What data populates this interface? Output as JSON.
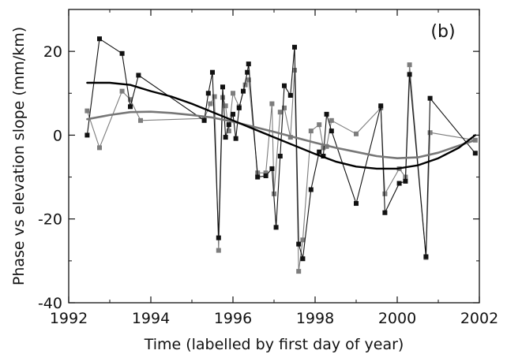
{
  "chart_data": {
    "type": "line",
    "panel_label": "(b)",
    "xlabel": "Time (labelled by first day of year)",
    "ylabel": "Phase vs elevation slope (mm/km)",
    "xlim": [
      1992,
      2002
    ],
    "ylim": [
      -40,
      30
    ],
    "x_ticks": [
      1992,
      1994,
      1996,
      1998,
      2000,
      2002
    ],
    "y_ticks": [
      -40,
      -20,
      0,
      20
    ],
    "grid": false,
    "legend": "none",
    "colors": {
      "black_series": "#111111",
      "gray_series": "#7d7d7d",
      "black_trend": "#000000",
      "gray_trend": "#777777"
    },
    "series": [
      {
        "kind": "points",
        "color_key": "black_series",
        "points": [
          [
            1992.45,
            0.0
          ],
          [
            1992.75,
            23.0
          ],
          [
            1993.3,
            19.5
          ],
          [
            1993.5,
            6.8
          ],
          [
            1993.7,
            14.3
          ],
          [
            1995.3,
            3.5
          ],
          [
            1995.4,
            10.0
          ],
          [
            1995.5,
            15.0
          ],
          [
            1995.65,
            -24.5
          ],
          [
            1995.75,
            11.5
          ],
          [
            1995.82,
            -0.5
          ],
          [
            1995.9,
            2.5
          ],
          [
            1996.0,
            5.0
          ],
          [
            1996.07,
            -0.8
          ],
          [
            1996.15,
            6.5
          ],
          [
            1996.25,
            10.5
          ],
          [
            1996.35,
            15.0
          ],
          [
            1996.38,
            17.0
          ],
          [
            1996.6,
            -10.0
          ],
          [
            1996.8,
            -9.7
          ],
          [
            1996.95,
            -8.0
          ],
          [
            1997.05,
            -22.0
          ],
          [
            1997.15,
            -5.0
          ],
          [
            1997.25,
            11.8
          ],
          [
            1997.4,
            9.5
          ],
          [
            1997.5,
            21.0
          ],
          [
            1997.6,
            -26.0
          ],
          [
            1997.7,
            -29.5
          ],
          [
            1997.9,
            -13.0
          ],
          [
            1998.1,
            -4.0
          ],
          [
            1998.2,
            -5.0
          ],
          [
            1998.28,
            5.0
          ],
          [
            1998.4,
            1.0
          ],
          [
            1999.0,
            -16.3
          ],
          [
            1999.6,
            7.0
          ],
          [
            1999.7,
            -18.5
          ],
          [
            2000.05,
            -11.5
          ],
          [
            2000.2,
            -11.0
          ],
          [
            2000.3,
            14.5
          ],
          [
            2000.7,
            -29.0
          ],
          [
            2000.8,
            8.8
          ],
          [
            2001.9,
            -4.3
          ]
        ]
      },
      {
        "kind": "points",
        "color_key": "gray_series",
        "points": [
          [
            1992.45,
            5.8
          ],
          [
            1992.75,
            -3.0
          ],
          [
            1993.3,
            10.5
          ],
          [
            1993.5,
            8.5
          ],
          [
            1993.75,
            3.5
          ],
          [
            1995.3,
            4.0
          ],
          [
            1995.45,
            7.5
          ],
          [
            1995.55,
            9.2
          ],
          [
            1995.65,
            -27.5
          ],
          [
            1995.75,
            9.0
          ],
          [
            1995.82,
            7.0
          ],
          [
            1995.9,
            1.0
          ],
          [
            1996.0,
            10.0
          ],
          [
            1996.15,
            6.8
          ],
          [
            1996.3,
            12.0
          ],
          [
            1996.38,
            13.2
          ],
          [
            1996.6,
            -9.0
          ],
          [
            1996.8,
            -9.0
          ],
          [
            1996.95,
            7.5
          ],
          [
            1997.0,
            -14.0
          ],
          [
            1997.15,
            5.5
          ],
          [
            1997.25,
            6.5
          ],
          [
            1997.4,
            -0.5
          ],
          [
            1997.5,
            15.5
          ],
          [
            1997.6,
            -32.5
          ],
          [
            1997.7,
            -25.0
          ],
          [
            1997.9,
            1.0
          ],
          [
            1998.1,
            2.5
          ],
          [
            1998.2,
            -3.0
          ],
          [
            1998.28,
            -2.7
          ],
          [
            1998.4,
            3.5
          ],
          [
            1999.0,
            0.3
          ],
          [
            1999.6,
            6.5
          ],
          [
            1999.7,
            -14.0
          ],
          [
            2000.05,
            -8.0
          ],
          [
            2000.2,
            -10.0
          ],
          [
            2000.3,
            16.8
          ],
          [
            2000.7,
            -29.2
          ],
          [
            2000.8,
            0.6
          ],
          [
            2001.9,
            -1.2
          ]
        ]
      },
      {
        "kind": "trend",
        "color_key": "black_trend",
        "points": [
          [
            1992.45,
            12.5
          ],
          [
            1993.0,
            12.5
          ],
          [
            1993.5,
            12.0
          ],
          [
            1994.0,
            10.5
          ],
          [
            1994.5,
            9.2
          ],
          [
            1995.0,
            7.5
          ],
          [
            1995.5,
            5.5
          ],
          [
            1996.0,
            3.5
          ],
          [
            1996.5,
            1.5
          ],
          [
            1997.0,
            -0.5
          ],
          [
            1997.5,
            -2.5
          ],
          [
            1998.0,
            -4.5
          ],
          [
            1998.5,
            -6.3
          ],
          [
            1999.0,
            -7.5
          ],
          [
            1999.5,
            -8.0
          ],
          [
            2000.0,
            -8.0
          ],
          [
            2000.5,
            -7.2
          ],
          [
            2001.0,
            -5.5
          ],
          [
            2001.5,
            -3.0
          ],
          [
            2001.9,
            0.0
          ]
        ]
      },
      {
        "kind": "trend",
        "color_key": "gray_trend",
        "points": [
          [
            1992.45,
            3.8
          ],
          [
            1993.0,
            4.8
          ],
          [
            1993.5,
            5.5
          ],
          [
            1994.0,
            5.6
          ],
          [
            1994.5,
            5.3
          ],
          [
            1995.0,
            4.8
          ],
          [
            1995.5,
            4.2
          ],
          [
            1996.0,
            3.2
          ],
          [
            1996.5,
            2.0
          ],
          [
            1997.0,
            0.8
          ],
          [
            1997.5,
            -0.5
          ],
          [
            1998.0,
            -1.8
          ],
          [
            1998.5,
            -3.0
          ],
          [
            1999.0,
            -4.0
          ],
          [
            1999.5,
            -5.0
          ],
          [
            2000.0,
            -5.5
          ],
          [
            2000.5,
            -5.3
          ],
          [
            2001.0,
            -4.2
          ],
          [
            2001.5,
            -2.5
          ],
          [
            2001.9,
            -1.2
          ]
        ]
      }
    ]
  }
}
